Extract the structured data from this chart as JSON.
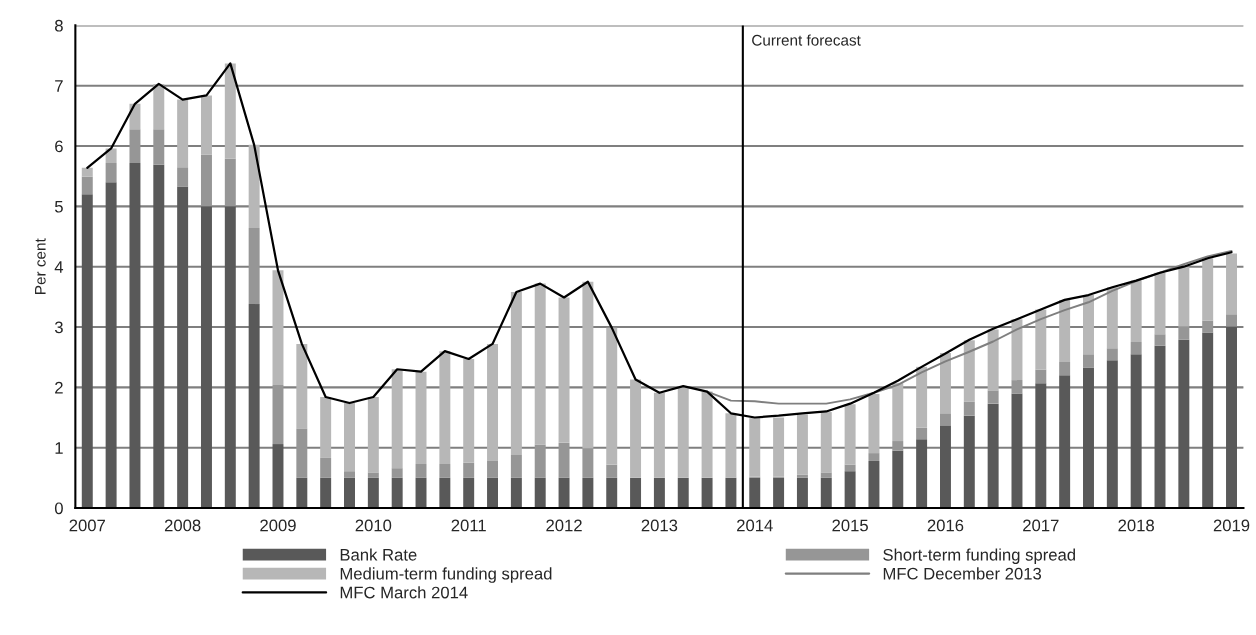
{
  "chart_data": {
    "type": "bar",
    "stacked": true,
    "ylabel": "Per cent",
    "x": [
      2007,
      2007.25,
      2007.5,
      2007.75,
      2008,
      2008.25,
      2008.5,
      2008.75,
      2009,
      2009.25,
      2009.5,
      2009.75,
      2010,
      2010.25,
      2010.5,
      2010.75,
      2011,
      2011.25,
      2011.5,
      2011.75,
      2012,
      2012.25,
      2012.5,
      2012.75,
      2013,
      2013.25,
      2013.5,
      2013.75,
      2014,
      2014.25,
      2014.5,
      2014.75,
      2015,
      2015.25,
      2015.5,
      2015.75,
      2016,
      2016.25,
      2016.5,
      2016.75,
      2017,
      2017.25,
      2017.5,
      2017.75,
      2018,
      2018.25,
      2018.5,
      2018.75,
      2019
    ],
    "series": [
      {
        "name": "Bank Rate",
        "color": "#595959",
        "values": [
          5.2,
          5.4,
          5.72,
          5.69,
          5.33,
          5.0,
          5.0,
          3.38,
          1.06,
          0.5,
          0.5,
          0.5,
          0.5,
          0.5,
          0.5,
          0.5,
          0.5,
          0.5,
          0.5,
          0.5,
          0.5,
          0.5,
          0.5,
          0.5,
          0.5,
          0.5,
          0.5,
          0.5,
          0.5,
          0.5,
          0.5,
          0.5,
          0.61,
          0.78,
          0.95,
          1.14,
          1.37,
          1.53,
          1.73,
          1.9,
          2.07,
          2.2,
          2.33,
          2.45,
          2.55,
          2.69,
          2.79,
          2.91,
          3.01
        ]
      },
      {
        "name": "Short-term funding spread",
        "color": "#969696",
        "values": [
          0.29,
          0.32,
          0.56,
          0.59,
          0.32,
          0.86,
          0.79,
          1.26,
          0.98,
          0.82,
          0.33,
          0.11,
          0.09,
          0.16,
          0.23,
          0.23,
          0.25,
          0.29,
          0.38,
          0.55,
          0.58,
          0.49,
          0.22,
          0,
          0,
          0,
          0,
          0,
          0.02,
          0.02,
          0.05,
          0.09,
          0.11,
          0.13,
          0.16,
          0.19,
          0.2,
          0.23,
          0.22,
          0.22,
          0.22,
          0.22,
          0.22,
          0.2,
          0.2,
          0.19,
          0.22,
          0.2,
          0.2
        ]
      },
      {
        "name": "Medium-term funding spread",
        "color": "#b7b7b7",
        "values": [
          0.15,
          0.24,
          0.42,
          0.75,
          1.12,
          0.98,
          1.58,
          1.38,
          1.9,
          1.4,
          1.01,
          1.13,
          1.25,
          1.64,
          1.53,
          1.87,
          1.72,
          1.93,
          2.7,
          2.67,
          2.41,
          2.76,
          2.27,
          1.63,
          1.41,
          1.52,
          1.43,
          1.07,
          0.97,
          0.98,
          1.0,
          1.0,
          1.0,
          0.98,
          0.96,
          1.01,
          1.0,
          1.02,
          1.01,
          1.01,
          1.0,
          1.03,
          0.98,
          1.01,
          1.02,
          1.02,
          0.99,
          1.03,
          1.01
        ]
      },
      {
        "name": "MFC December 2013",
        "type": "line",
        "color": "#7f7f7f",
        "x": [
          2013.5,
          2013.75,
          2014,
          2014.25,
          2014.5,
          2014.75,
          2015,
          2015.25,
          2015.5,
          2015.75,
          2016,
          2016.25,
          2016.5,
          2016.75,
          2017,
          2017.25,
          2017.5,
          2017.75,
          2018,
          2018.25,
          2018.5,
          2018.75,
          2019
        ],
        "values": [
          1.93,
          1.78,
          1.77,
          1.73,
          1.73,
          1.73,
          1.8,
          1.91,
          2.04,
          2.25,
          2.43,
          2.59,
          2.76,
          2.96,
          3.13,
          3.28,
          3.41,
          3.6,
          3.76,
          3.9,
          4.04,
          4.17,
          4.26
        ]
      },
      {
        "name": "MFC March 2014",
        "type": "line",
        "color": "#000000",
        "values": [
          5.64,
          5.96,
          6.7,
          7.03,
          6.77,
          6.84,
          7.37,
          6.02,
          3.94,
          2.72,
          1.84,
          1.74,
          1.84,
          2.3,
          2.26,
          2.6,
          2.47,
          2.72,
          3.58,
          3.72,
          3.49,
          3.75,
          2.99,
          2.13,
          1.91,
          2.02,
          1.93,
          1.57,
          1.5,
          1.53,
          1.57,
          1.6,
          1.73,
          1.91,
          2.11,
          2.34,
          2.56,
          2.79,
          2.97,
          3.13,
          3.29,
          3.45,
          3.53,
          3.66,
          3.77,
          3.9,
          4.0,
          4.14,
          4.24
        ]
      }
    ],
    "ref_lines": [
      {
        "axis": "x",
        "value": 2013.875,
        "label": "Current forecast",
        "color": "#000000"
      }
    ],
    "xlim": [
      2006.875,
      2019.125
    ],
    "xticks": [
      2007,
      2008,
      2009,
      2010,
      2011,
      2012,
      2013,
      2014,
      2015,
      2016,
      2017,
      2018,
      2019
    ],
    "ylim": [
      0,
      8
    ],
    "yticks": [
      0,
      1,
      2,
      3,
      4,
      5,
      6,
      7,
      8
    ],
    "grid": "y",
    "legend": "bottom"
  }
}
